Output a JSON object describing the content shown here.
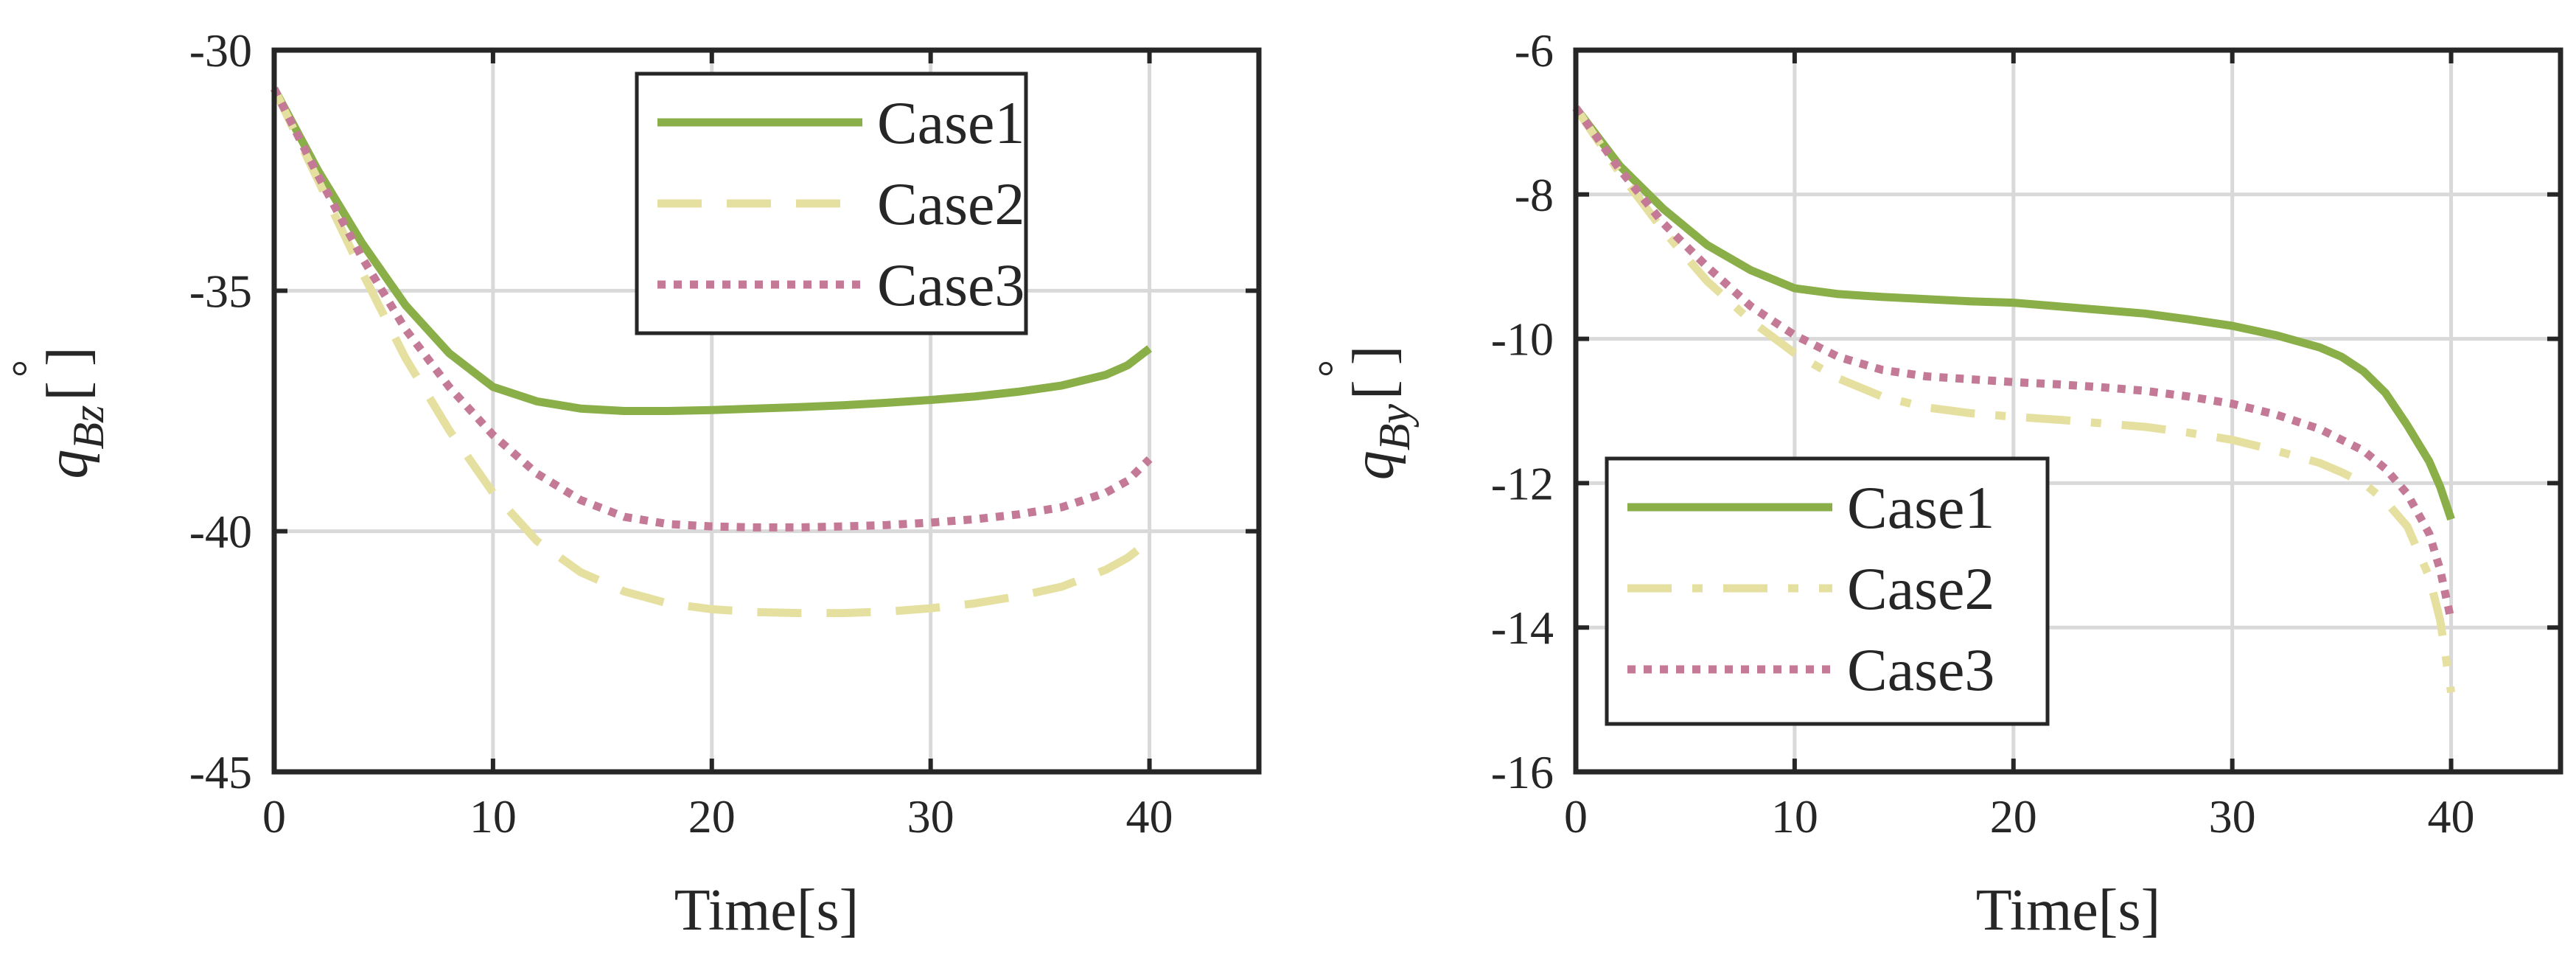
{
  "figure": {
    "panels": 2
  },
  "colors": {
    "case1": "#8aae48",
    "case2": "#e6e0a0",
    "case3": "#c47a96",
    "axes": "#262626",
    "grid": "#d9d9d9"
  },
  "chart_data": [
    {
      "type": "line",
      "xlabel": "Time[s]",
      "ylabel": "q",
      "ylabel_sub": "Bz",
      "ylabel_unit": "[ ]",
      "ylabel_degree": "°",
      "xlim": [
        0,
        45
      ],
      "ylim": [
        -45,
        -30
      ],
      "xticks": [
        0,
        10,
        20,
        30,
        40
      ],
      "yticks": [
        -45,
        -40,
        -35,
        -30
      ],
      "grid": true,
      "legend_position": "top-right",
      "series": [
        {
          "name": "Case1",
          "style": "solid",
          "color_key": "case1",
          "x": [
            0,
            2,
            4,
            6,
            8,
            10,
            12,
            14,
            16,
            18,
            20,
            22,
            24,
            26,
            28,
            30,
            32,
            34,
            36,
            38,
            39,
            40
          ],
          "y": [
            -30.8,
            -32.5,
            -34.0,
            -35.3,
            -36.3,
            -37.0,
            -37.3,
            -37.45,
            -37.5,
            -37.5,
            -37.48,
            -37.45,
            -37.42,
            -37.38,
            -37.33,
            -37.27,
            -37.2,
            -37.1,
            -36.97,
            -36.75,
            -36.55,
            -36.2
          ]
        },
        {
          "name": "Case2",
          "style": "dashed",
          "color_key": "case2",
          "x": [
            0,
            2,
            4,
            6,
            8,
            10,
            12,
            14,
            16,
            18,
            20,
            22,
            24,
            26,
            28,
            30,
            32,
            34,
            36,
            38,
            39,
            40
          ],
          "y": [
            -30.8,
            -32.7,
            -34.6,
            -36.4,
            -37.9,
            -39.2,
            -40.2,
            -40.85,
            -41.25,
            -41.5,
            -41.62,
            -41.68,
            -41.7,
            -41.7,
            -41.67,
            -41.6,
            -41.5,
            -41.35,
            -41.15,
            -40.8,
            -40.55,
            -40.2
          ]
        },
        {
          "name": "Case3",
          "style": "dotted",
          "color_key": "case3",
          "x": [
            0,
            2,
            4,
            6,
            8,
            10,
            12,
            14,
            16,
            18,
            20,
            22,
            24,
            26,
            28,
            30,
            32,
            34,
            36,
            38,
            39,
            40
          ],
          "y": [
            -30.8,
            -32.6,
            -34.3,
            -35.8,
            -37.0,
            -38.0,
            -38.8,
            -39.35,
            -39.7,
            -39.85,
            -39.9,
            -39.92,
            -39.92,
            -39.9,
            -39.87,
            -39.82,
            -39.75,
            -39.65,
            -39.5,
            -39.2,
            -38.95,
            -38.5
          ]
        }
      ]
    },
    {
      "type": "line",
      "xlabel": "Time[s]",
      "ylabel": "q",
      "ylabel_sub": "By",
      "ylabel_unit": "[ ]",
      "ylabel_degree": "°",
      "xlim": [
        0,
        45
      ],
      "ylim": [
        -16,
        -6
      ],
      "xticks": [
        0,
        10,
        20,
        30,
        40
      ],
      "yticks": [
        -16,
        -14,
        -12,
        -10,
        -8,
        -6
      ],
      "grid": true,
      "legend_position": "bottom-left",
      "series": [
        {
          "name": "Case1",
          "style": "solid",
          "color_key": "case1",
          "x": [
            0,
            2,
            4,
            6,
            8,
            10,
            12,
            14,
            16,
            18,
            20,
            22,
            24,
            26,
            28,
            30,
            32,
            34,
            35,
            36,
            37,
            38,
            39,
            39.5,
            40
          ],
          "y": [
            -6.8,
            -7.6,
            -8.2,
            -8.7,
            -9.05,
            -9.3,
            -9.38,
            -9.42,
            -9.45,
            -9.48,
            -9.5,
            -9.55,
            -9.6,
            -9.65,
            -9.73,
            -9.82,
            -9.95,
            -10.12,
            -10.25,
            -10.45,
            -10.75,
            -11.2,
            -11.7,
            -12.05,
            -12.5
          ]
        },
        {
          "name": "Case2",
          "style": "dashdot",
          "color_key": "case2",
          "x": [
            0,
            2,
            4,
            6,
            8,
            10,
            12,
            14,
            16,
            18,
            20,
            22,
            24,
            26,
            28,
            30,
            32,
            34,
            35,
            36,
            37,
            38,
            39,
            39.5,
            40
          ],
          "y": [
            -6.8,
            -7.7,
            -8.5,
            -9.2,
            -9.75,
            -10.2,
            -10.55,
            -10.8,
            -10.95,
            -11.03,
            -11.08,
            -11.12,
            -11.17,
            -11.22,
            -11.3,
            -11.4,
            -11.55,
            -11.72,
            -11.85,
            -12.0,
            -12.25,
            -12.6,
            -13.3,
            -13.9,
            -14.9
          ]
        },
        {
          "name": "Case3",
          "style": "dotted",
          "color_key": "case3",
          "x": [
            0,
            2,
            4,
            6,
            8,
            10,
            12,
            14,
            16,
            18,
            20,
            22,
            24,
            26,
            28,
            30,
            32,
            34,
            35,
            36,
            37,
            38,
            39,
            39.5,
            40
          ],
          "y": [
            -6.8,
            -7.65,
            -8.4,
            -9.0,
            -9.55,
            -9.95,
            -10.25,
            -10.43,
            -10.52,
            -10.56,
            -10.6,
            -10.63,
            -10.67,
            -10.72,
            -10.8,
            -10.9,
            -11.05,
            -11.25,
            -11.4,
            -11.55,
            -11.8,
            -12.15,
            -12.7,
            -13.2,
            -13.9
          ]
        }
      ]
    }
  ]
}
